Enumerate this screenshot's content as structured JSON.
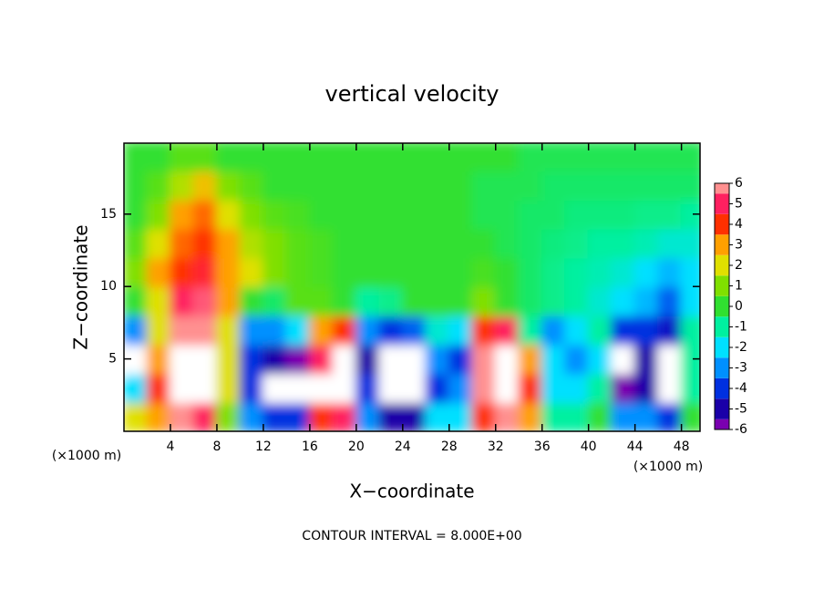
{
  "chart_data": {
    "type": "heatmap",
    "title": "vertical velocity",
    "x_label": "X−coordinate",
    "y_label": "Z−coordinate",
    "x_unit_label": "(×1000 m)",
    "y_unit_label": "(×1000 m)",
    "footnote": "CONTOUR INTERVAL = 8.000E+00",
    "xlim": [
      0,
      49.6
    ],
    "ylim": [
      0,
      19.9
    ],
    "xticks": [
      4,
      8,
      12,
      16,
      20,
      24,
      28,
      32,
      36,
      40,
      44,
      48
    ],
    "yticks": [
      5,
      10,
      15
    ],
    "x": [
      1,
      3,
      5,
      7,
      9,
      11,
      13,
      15,
      17,
      19,
      21,
      23,
      25,
      27,
      29,
      31,
      33,
      35,
      37,
      39,
      41,
      43,
      45,
      47,
      49
    ],
    "z": [
      1,
      3,
      5,
      7,
      9,
      11,
      13,
      15,
      17,
      19
    ],
    "values": [
      [
        2,
        3,
        6,
        5,
        1,
        -3,
        -4,
        -4,
        4,
        5,
        -3,
        -5,
        -5,
        -2,
        -2,
        4,
        6,
        3,
        -1,
        -1,
        0,
        -3,
        -3,
        -4,
        0
      ],
      [
        -2,
        4,
        8,
        8,
        2,
        -4,
        -7,
        -7,
        7,
        8,
        -4,
        -7,
        -8,
        -4,
        -3,
        6,
        8,
        4,
        -2,
        -2,
        -1,
        -6,
        -5,
        -7,
        -1
      ],
      [
        -7,
        3,
        8,
        8,
        2,
        -4,
        -5,
        -6,
        5,
        7,
        -5,
        -7,
        -7,
        -3,
        -4,
        6,
        8,
        3,
        -2,
        -3,
        -2,
        -7,
        -5,
        -7,
        -1
      ],
      [
        -3,
        2,
        6,
        6,
        2,
        -3,
        -3,
        -2,
        3,
        4,
        -3,
        -4,
        -3.5,
        -1.5,
        -2,
        4,
        5,
        -1,
        -3,
        -2,
        -1,
        -4,
        -4,
        -4.5,
        -1
      ],
      [
        0,
        2,
        5,
        5.5,
        3,
        0,
        -0.5,
        0.5,
        0.5,
        0,
        -1,
        -0.8,
        0,
        0,
        0,
        1,
        0,
        -0.5,
        -0.8,
        -1,
        -1.5,
        -2,
        -2.5,
        -3.5,
        -2
      ],
      [
        1,
        3,
        4,
        4.5,
        3,
        2,
        1,
        0.5,
        0.3,
        0,
        0,
        0,
        0,
        0,
        0,
        0.3,
        0,
        -0.5,
        -0.8,
        -1,
        -1.2,
        -1.5,
        -2,
        -2.5,
        -2
      ],
      [
        0.5,
        2,
        3.5,
        4,
        3,
        1.5,
        1,
        0.5,
        0.3,
        0,
        0,
        0,
        0,
        0,
        0,
        0,
        -0.3,
        -0.5,
        -0.7,
        -0.8,
        -1,
        -1,
        -1.2,
        -1.5,
        -1.5
      ],
      [
        0,
        1,
        3,
        3.5,
        2,
        1,
        0.5,
        0.3,
        0,
        0,
        0,
        0,
        0,
        0,
        0,
        -0.3,
        -0.3,
        -0.5,
        -0.5,
        -0.7,
        -0.7,
        -0.7,
        -0.8,
        -0.8,
        -1
      ],
      [
        0,
        0.5,
        1.5,
        2.5,
        1,
        0.5,
        0,
        0,
        0,
        0,
        0,
        0,
        0,
        0,
        0,
        -0.3,
        -0.3,
        -0.3,
        -0.5,
        -0.5,
        -0.5,
        -0.5,
        -0.5,
        -0.5,
        -0.5
      ],
      [
        0,
        0,
        0.5,
        0.5,
        0,
        0,
        0,
        0,
        0,
        0,
        0,
        0,
        0,
        0,
        0,
        0,
        0,
        -0.3,
        -0.3,
        -0.3,
        -0.3,
        -0.3,
        -0.3,
        -0.3,
        -0.3
      ]
    ],
    "colorbar": {
      "ticks": [
        -6,
        -5,
        -4,
        -3,
        -2,
        -1,
        0,
        1,
        2,
        3,
        4,
        5,
        6
      ],
      "colors": [
        "#7a00b0",
        "#1a00a8",
        "#0030e0",
        "#0090ff",
        "#00e0ff",
        "#00f0a0",
        "#30e030",
        "#80e000",
        "#e0e000",
        "#ffa000",
        "#ff3000",
        "#ff2060",
        "#ff9090"
      ]
    },
    "out_of_range_color": "#ffffff"
  }
}
